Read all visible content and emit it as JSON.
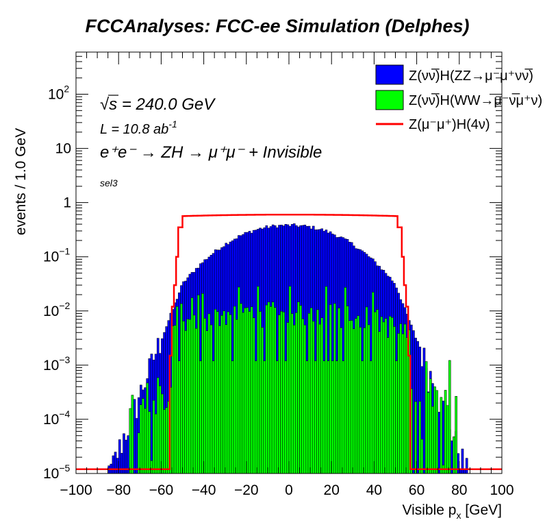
{
  "chart_data": {
    "type": "histogram",
    "title": "FCCAnalyses: FCC-ee Simulation (Delphes)",
    "xlabel": "Visible p",
    "xlabel_sub": "x",
    "xlabel_unit": " [GeV]",
    "ylabel": "events / 1.0 GeV",
    "x_range": [
      -100,
      100
    ],
    "y_range": [
      1e-05,
      600
    ],
    "y_scale": "log",
    "x_ticks": [
      "−100",
      "−80",
      "−60",
      "−40",
      "−20",
      "0",
      "20",
      "40",
      "60",
      "80",
      "100"
    ],
    "x_tick_values": [
      -100,
      -80,
      -60,
      -40,
      -20,
      0,
      20,
      40,
      60,
      80,
      100
    ],
    "y_ticks": [
      {
        "value": 1e-05,
        "base": "10",
        "exp": "−5"
      },
      {
        "value": 0.0001,
        "base": "10",
        "exp": "−4"
      },
      {
        "value": 0.001,
        "base": "10",
        "exp": "−3"
      },
      {
        "value": 0.01,
        "base": "10",
        "exp": "−2"
      },
      {
        "value": 0.1,
        "base": "10",
        "exp": "−1"
      },
      {
        "value": 1,
        "base": "1",
        "exp": ""
      },
      {
        "value": 10,
        "base": "10",
        "exp": ""
      },
      {
        "value": 100,
        "base": "10",
        "exp": "2"
      }
    ],
    "annotations": {
      "sqrt_s": "s",
      "energy": " = 240.0 GeV",
      "lumi": "L = 10.8 ab",
      "lumi_exp": "-1",
      "process": "e⁺e⁻ → ZH → μ⁺μ⁻ + Invisible",
      "selection": "sel3"
    },
    "legend_position": "top-right",
    "series": [
      {
        "name": "Z(νν̅)H(ZZ→μ⁻μ⁺νν̅)",
        "style": "filled",
        "color": "#0000ff",
        "profile": "zz",
        "peak": 0.38,
        "xmin": -92,
        "xmax": 92
      },
      {
        "name": "Z(νν̅)H(WW→μ⁻ν̅μ⁺ν)",
        "style": "filled",
        "color": "#00ff00",
        "profile": "ww",
        "peak": 0.011,
        "xmin": -75,
        "xmax": 80
      },
      {
        "name": "Z(μ⁻μ⁺)H(4ν)",
        "style": "line",
        "color": "#ff0000",
        "profile": "nu",
        "peak": 0.6,
        "xmin": -57,
        "xmax": 57
      }
    ],
    "grid": false
  }
}
